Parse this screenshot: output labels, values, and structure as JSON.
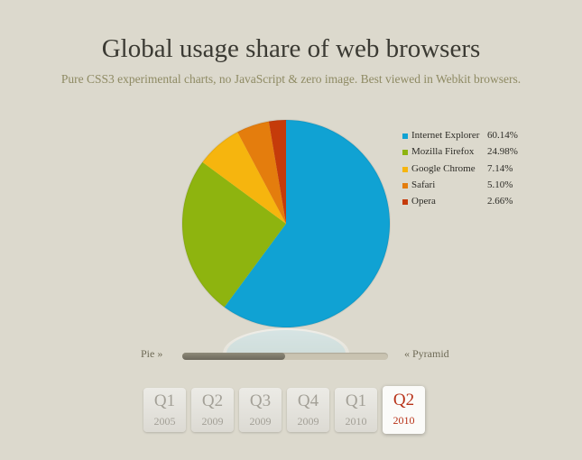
{
  "header": {
    "title": "Global usage share of web browsers",
    "subtitle": "Pure CSS3 experimental charts, no JavaScript & zero image. Best viewed in Webkit browsers."
  },
  "chart_data": {
    "type": "pie",
    "categories": [
      "Internet Explorer",
      "Mozilla Firefox",
      "Google Chrome",
      "Safari",
      "Opera"
    ],
    "values": [
      60.14,
      24.98,
      7.14,
      5.1,
      2.66
    ],
    "value_labels": [
      "60.14%",
      "24.98%",
      "7.14%",
      "5.10%",
      "2.66%"
    ],
    "colors": [
      "#10a2d3",
      "#8eb40f",
      "#f6b50e",
      "#e47d0d",
      "#c53b0a"
    ],
    "legend_position": "right"
  },
  "slider": {
    "left_label": "Pie »",
    "right_label": "« Pyramid",
    "value": 0.5
  },
  "tabs": [
    {
      "quarter": "Q1",
      "year": "2005",
      "active": false
    },
    {
      "quarter": "Q2",
      "year": "2009",
      "active": false
    },
    {
      "quarter": "Q3",
      "year": "2009",
      "active": false
    },
    {
      "quarter": "Q4",
      "year": "2009",
      "active": false
    },
    {
      "quarter": "Q1",
      "year": "2010",
      "active": false
    },
    {
      "quarter": "Q2",
      "year": "2010",
      "active": true
    }
  ]
}
